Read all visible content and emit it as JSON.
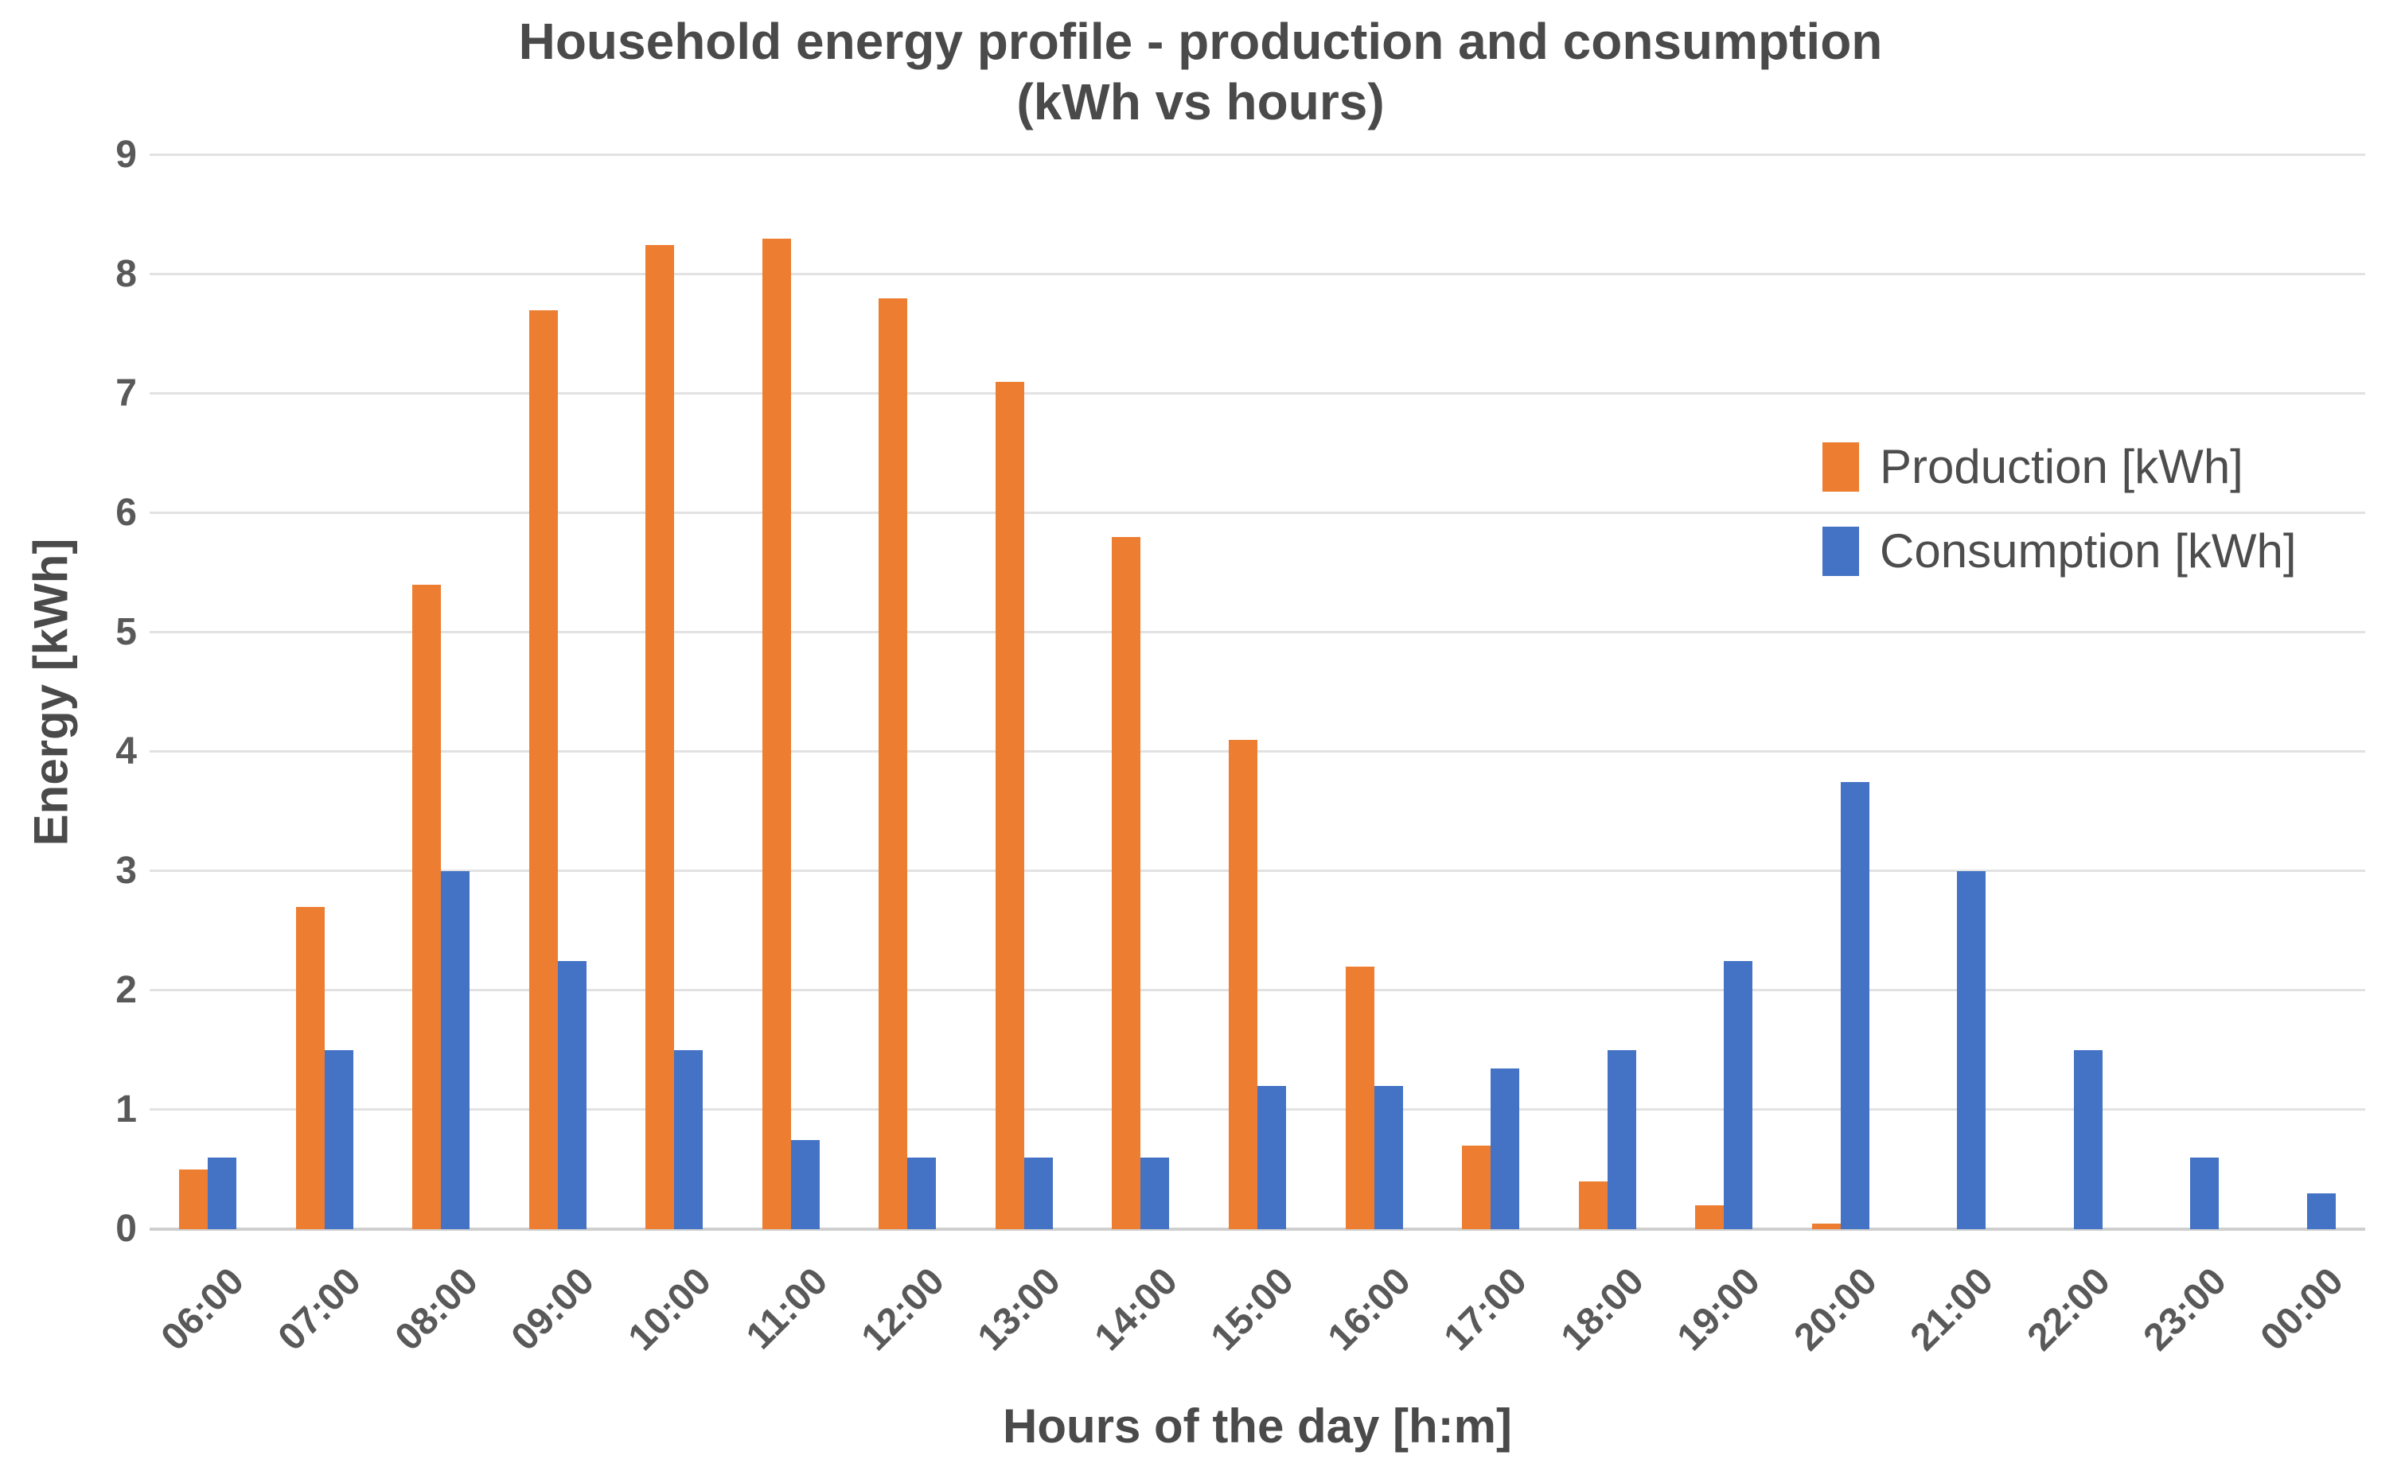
{
  "title": {
    "line1": "Household energy profile - production and consumption",
    "line2": "(kWh vs hours)"
  },
  "y_axis": {
    "label": "Energy [kWh]",
    "ticks": [
      "0",
      "1",
      "2",
      "3",
      "4",
      "5",
      "6",
      "7",
      "8",
      "9"
    ],
    "min": 0,
    "max": 9
  },
  "x_axis": {
    "label": "Hours of the day [h:m]"
  },
  "legend": [
    {
      "name": "Production [kWh]",
      "color": "#ED7D31"
    },
    {
      "name": "Consumption [kWh]",
      "color": "#4472C4"
    }
  ],
  "chart_data": {
    "type": "bar",
    "title": "Household energy profile - production and consumption (kWh vs hours)",
    "xlabel": "Hours of the day [h:m]",
    "ylabel": "Energy [kWh]",
    "ylim": [
      0,
      9
    ],
    "grid": true,
    "legend_position": "upper-right-inside",
    "categories": [
      "06:00",
      "07:00",
      "08:00",
      "09:00",
      "10:00",
      "11:00",
      "12:00",
      "13:00",
      "14:00",
      "15:00",
      "16:00",
      "17:00",
      "18:00",
      "19:00",
      "20:00",
      "21:00",
      "22:00",
      "23:00",
      "00:00"
    ],
    "series": [
      {
        "name": "Production [kWh]",
        "color": "#ED7D31",
        "values": [
          0.5,
          2.7,
          5.4,
          7.7,
          8.25,
          8.3,
          7.8,
          7.1,
          5.8,
          4.1,
          2.2,
          0.7,
          0.4,
          0.2,
          0.05,
          0,
          0,
          0,
          0
        ]
      },
      {
        "name": "Consumption [kWh]",
        "color": "#4472C4",
        "values": [
          0.6,
          1.5,
          3.0,
          2.25,
          1.5,
          0.75,
          0.6,
          0.6,
          0.6,
          1.2,
          1.2,
          1.35,
          1.5,
          2.25,
          3.75,
          3.0,
          1.5,
          0.6,
          0.3
        ]
      }
    ]
  }
}
